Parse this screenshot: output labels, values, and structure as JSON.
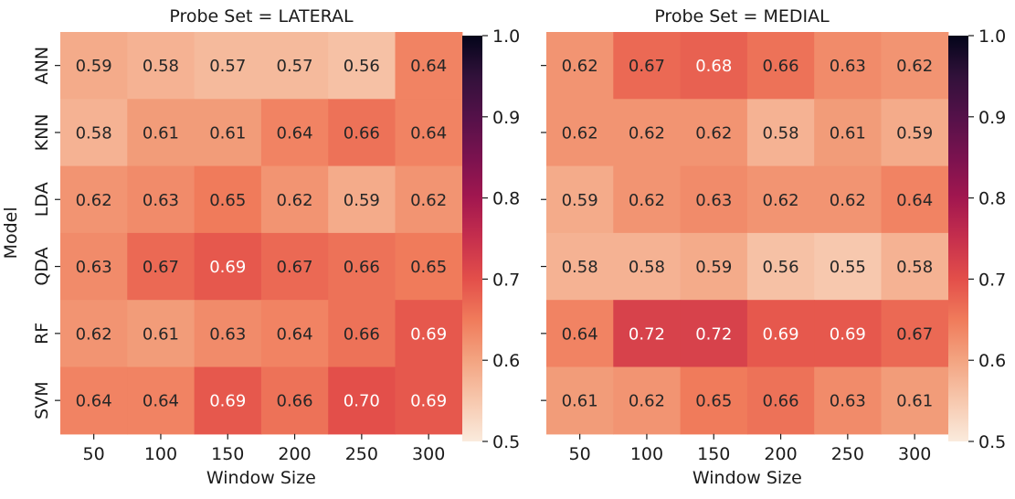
{
  "chart_data": [
    {
      "type": "heatmap",
      "title": "Probe Set = LATERAL",
      "xlabel": "Window Size",
      "ylabel": "Model",
      "x": [
        "50",
        "100",
        "150",
        "200",
        "250",
        "300"
      ],
      "y": [
        "ANN",
        "KNN",
        "LDA",
        "QDA",
        "RF",
        "SVM"
      ],
      "values": [
        [
          0.59,
          0.58,
          0.57,
          0.57,
          0.56,
          0.64
        ],
        [
          0.58,
          0.61,
          0.61,
          0.64,
          0.66,
          0.64
        ],
        [
          0.62,
          0.63,
          0.65,
          0.62,
          0.59,
          0.62
        ],
        [
          0.63,
          0.67,
          0.69,
          0.67,
          0.66,
          0.65
        ],
        [
          0.62,
          0.61,
          0.63,
          0.64,
          0.66,
          0.69
        ],
        [
          0.64,
          0.64,
          0.69,
          0.66,
          0.7,
          0.69
        ]
      ],
      "labels": [
        [
          "0.59",
          "0.58",
          "0.57",
          "0.57",
          "0.56",
          "0.64"
        ],
        [
          "0.58",
          "0.61",
          "0.61",
          "0.64",
          "0.66",
          "0.64"
        ],
        [
          "0.62",
          "0.63",
          "0.65",
          "0.62",
          "0.59",
          "0.62"
        ],
        [
          "0.63",
          "0.67",
          "0.69",
          "0.67",
          "0.66",
          "0.65"
        ],
        [
          "0.62",
          "0.61",
          "0.63",
          "0.64",
          "0.66",
          "0.69"
        ],
        [
          "0.64",
          "0.64",
          "0.69",
          "0.66",
          "0.70",
          "0.69"
        ]
      ],
      "colorbar": {
        "range": [
          0.5,
          1.0
        ],
        "ticks": [
          0.5,
          0.6,
          0.7,
          0.8,
          0.9,
          1.0
        ],
        "tick_labels": [
          "0.5",
          "0.6",
          "0.7",
          "0.8",
          "0.9",
          "1.0"
        ]
      },
      "colormap": "rocket_r"
    },
    {
      "type": "heatmap",
      "title": "Probe Set = MEDIAL",
      "xlabel": "Window Size",
      "ylabel": "",
      "x": [
        "50",
        "100",
        "150",
        "200",
        "250",
        "300"
      ],
      "y": [
        "ANN",
        "KNN",
        "LDA",
        "QDA",
        "RF",
        "SVM"
      ],
      "values": [
        [
          0.62,
          0.67,
          0.68,
          0.66,
          0.63,
          0.62
        ],
        [
          0.62,
          0.62,
          0.62,
          0.58,
          0.61,
          0.59
        ],
        [
          0.59,
          0.62,
          0.63,
          0.62,
          0.62,
          0.64
        ],
        [
          0.58,
          0.58,
          0.59,
          0.56,
          0.55,
          0.58
        ],
        [
          0.64,
          0.72,
          0.72,
          0.69,
          0.69,
          0.67
        ],
        [
          0.61,
          0.62,
          0.65,
          0.66,
          0.63,
          0.61
        ]
      ],
      "labels": [
        [
          "0.62",
          "0.67",
          "0.68",
          "0.66",
          "0.63",
          "0.62"
        ],
        [
          "0.62",
          "0.62",
          "0.62",
          "0.58",
          "0.61",
          "0.59"
        ],
        [
          "0.59",
          "0.62",
          "0.63",
          "0.62",
          "0.62",
          "0.64"
        ],
        [
          "0.58",
          "0.58",
          "0.59",
          "0.56",
          "0.55",
          "0.58"
        ],
        [
          "0.64",
          "0.72",
          "0.72",
          "0.69",
          "0.69",
          "0.67"
        ],
        [
          "0.61",
          "0.62",
          "0.65",
          "0.66",
          "0.63",
          "0.61"
        ]
      ],
      "colorbar": {
        "range": [
          0.5,
          1.0
        ],
        "ticks": [
          0.5,
          0.6,
          0.7,
          0.8,
          0.9,
          1.0
        ],
        "tick_labels": [
          "0.5",
          "0.6",
          "0.7",
          "0.8",
          "0.9",
          "1.0"
        ]
      },
      "colormap": "rocket_r"
    }
  ]
}
